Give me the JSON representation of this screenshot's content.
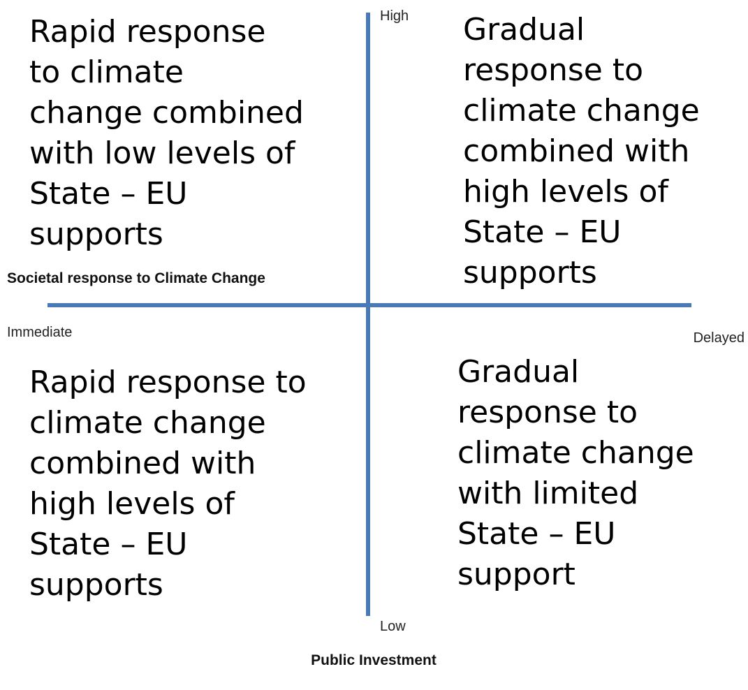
{
  "vertical_axis": {
    "top_label": "High",
    "bottom_label": "Low",
    "title": "Public Investment"
  },
  "horizontal_axis": {
    "left_label": "Immediate",
    "right_label": "Delayed",
    "title": "Societal response to Climate Change"
  },
  "quadrants": [
    {
      "lines": [
        "Rapid response",
        "to climate",
        "change combined",
        "with low levels of",
        "State – EU",
        "supports"
      ]
    },
    {
      "lines": [
        "Gradual",
        "response to",
        "climate change",
        "combined with",
        "high levels of",
        "State – EU",
        "supports"
      ]
    },
    {
      "lines": [
        "Rapid response to",
        "climate change",
        "combined with",
        "high levels of",
        "State – EU",
        "supports"
      ]
    },
    {
      "lines": [
        "Gradual",
        "response to",
        "climate change",
        "with limited",
        "State – EU",
        "support"
      ]
    }
  ]
}
